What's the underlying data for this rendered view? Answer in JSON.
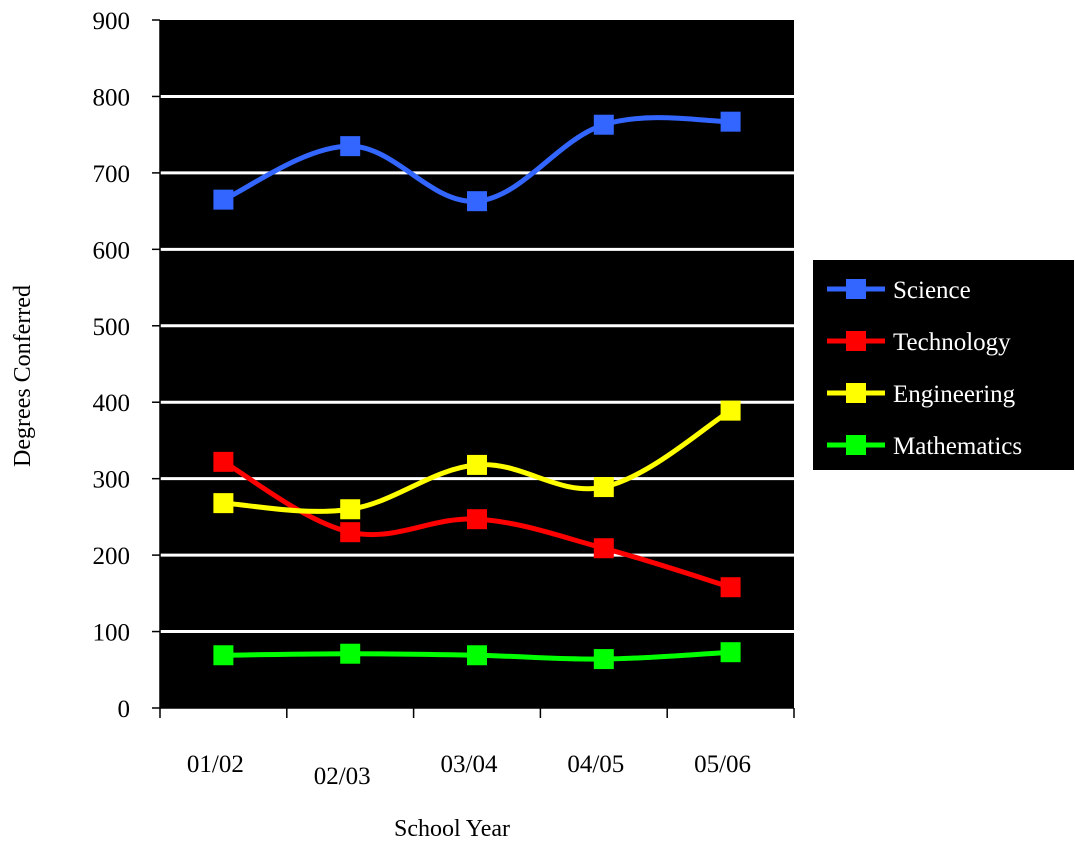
{
  "chart_data": {
    "type": "line",
    "title": "",
    "xlabel": "School Year",
    "ylabel": "Degrees Conferred",
    "categories": [
      "01/02",
      "02/03",
      "03/04",
      "04/05",
      "05/06"
    ],
    "ylim": [
      0,
      900
    ],
    "yticks": [
      "0",
      "100",
      "200",
      "300",
      "400",
      "500",
      "600",
      "700",
      "800",
      "900"
    ],
    "grid": true,
    "plot_background": "#000000",
    "gridline_color": "#ffffff",
    "smoothed": true,
    "legend_position": "right",
    "legend_background": "#000000",
    "series": [
      {
        "name": "Science",
        "color": "#3366ff",
        "marker": "square",
        "values": [
          665,
          735,
          663,
          763,
          767
        ]
      },
      {
        "name": "Technology",
        "color": "#ff0000",
        "marker": "square",
        "values": [
          322,
          230,
          247,
          209,
          158
        ]
      },
      {
        "name": "Engineering",
        "color": "#ffff00",
        "marker": "square",
        "values": [
          268,
          260,
          318,
          289,
          389
        ]
      },
      {
        "name": "Mathematics",
        "color": "#00ff00",
        "marker": "square",
        "values": [
          69,
          71,
          69,
          64,
          73
        ]
      }
    ]
  }
}
